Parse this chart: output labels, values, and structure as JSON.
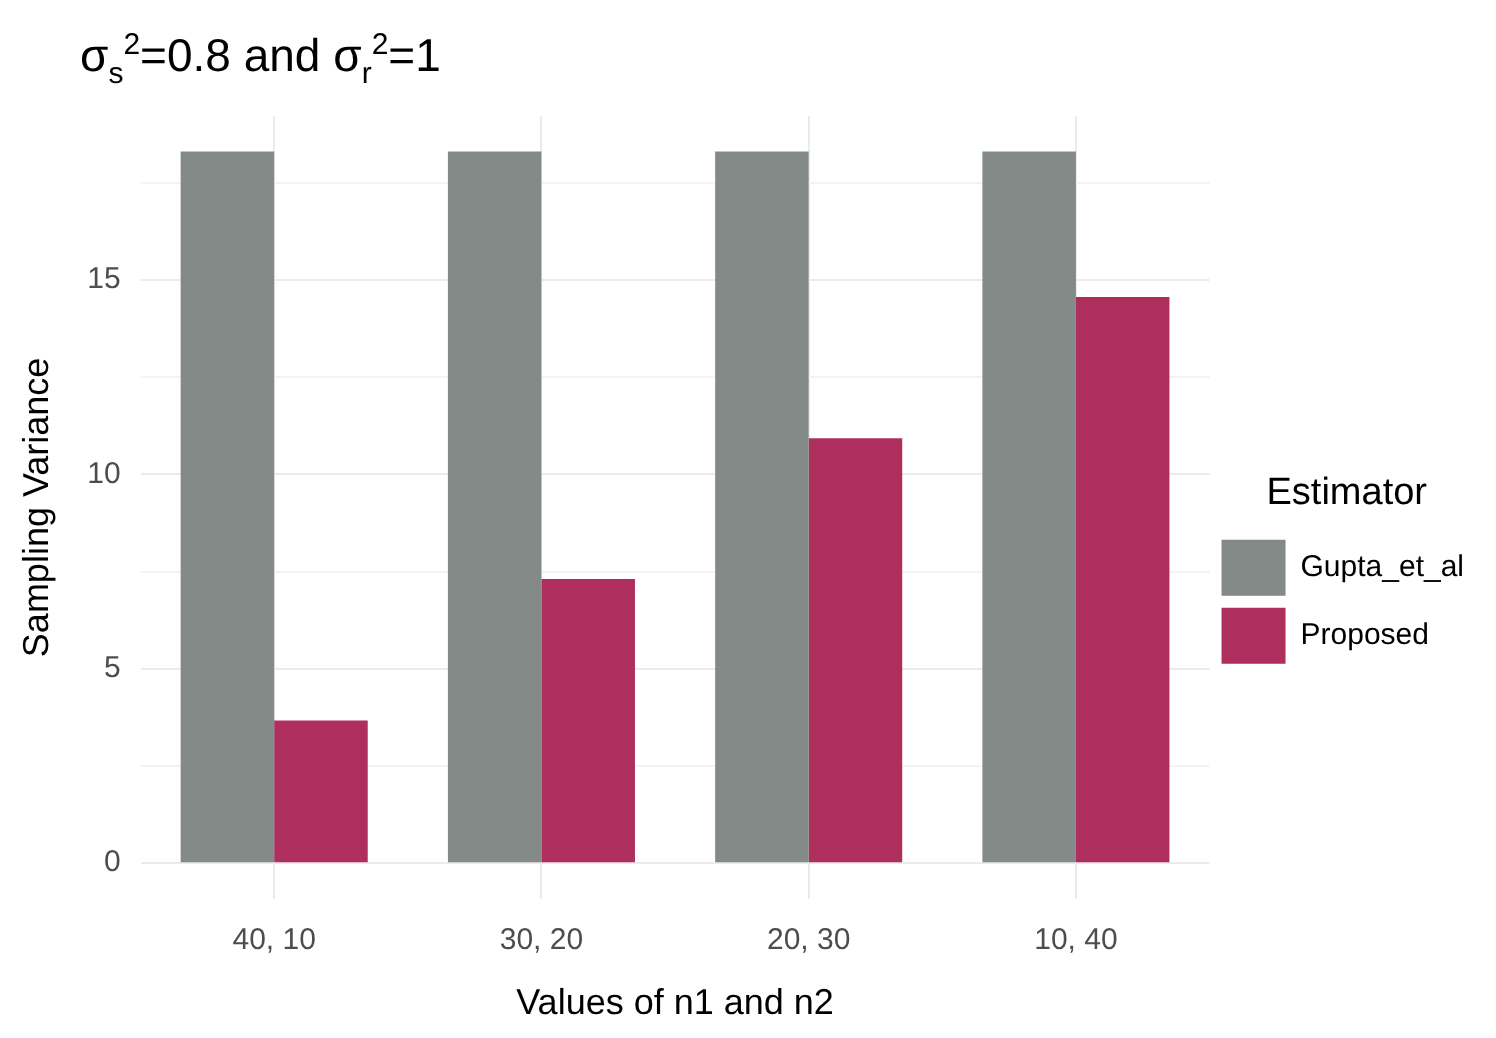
{
  "chart_data": {
    "type": "bar",
    "title": "σ$_{s}$$^{2}$=0.8 and σ$_{r}$$^{2}$=1",
    "xlabel": "Values of n1 and n2",
    "ylabel": "Sampling Variance",
    "legend_title": "Estimator",
    "categories": [
      "40, 10",
      "30, 20",
      "20, 30",
      "10, 40"
    ],
    "series": [
      {
        "name": "Gupta_et_al",
        "color": "#838a87",
        "values": [
          18.3,
          18.3,
          18.3,
          18.3
        ]
      },
      {
        "name": "Proposed",
        "color": "#ae2f5d",
        "values": [
          3.67,
          7.31,
          10.93,
          14.56
        ]
      }
    ],
    "ylim": [
      -0.915,
      19.215
    ],
    "yticks": [
      0,
      {
        "value": 2.5,
        "label": null
      },
      5,
      {
        "value": 7.5,
        "label": null
      },
      10,
      {
        "value": 12.5,
        "label": null
      },
      15,
      {
        "value": 17.5,
        "label": null
      }
    ],
    "grid": true,
    "legend": "right"
  }
}
